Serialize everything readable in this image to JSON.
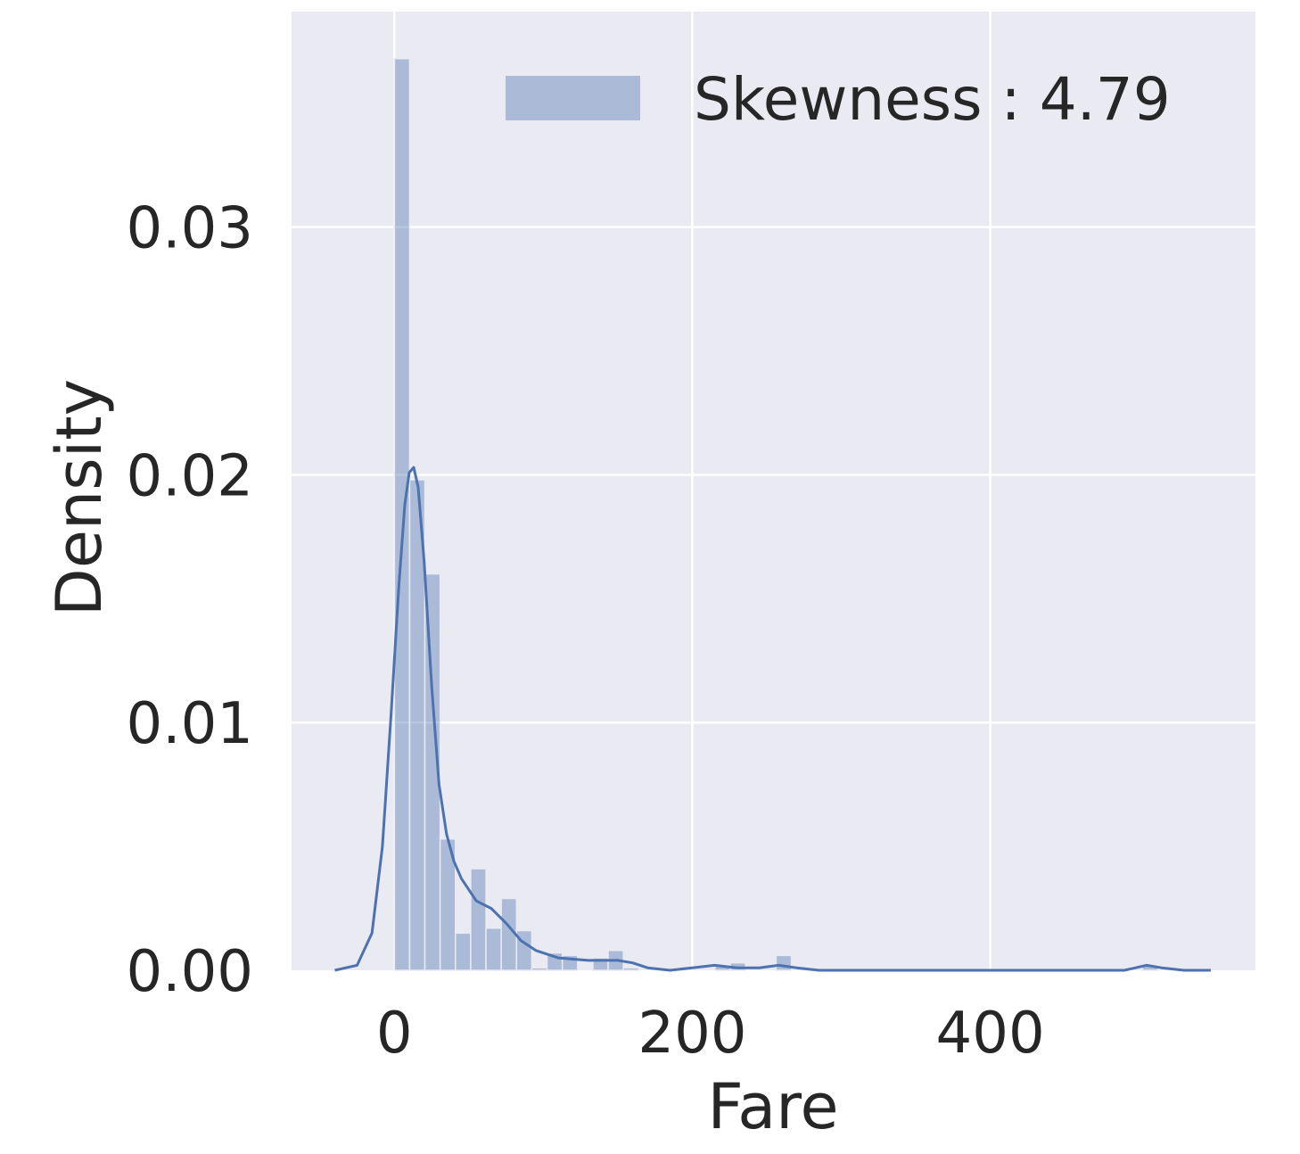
{
  "chart_data": {
    "type": "bar",
    "title": "",
    "xlabel": "Fare",
    "ylabel": "Density",
    "xlim": [
      -69,
      578
    ],
    "ylim": [
      0,
      0.0387
    ],
    "x_ticks": [
      {
        "value": 0,
        "label": "0"
      },
      {
        "value": 200,
        "label": "200"
      },
      {
        "value": 400,
        "label": "400"
      }
    ],
    "y_ticks": [
      {
        "value": 0.0,
        "label": "0.00"
      },
      {
        "value": 0.01,
        "label": "0.01"
      },
      {
        "value": 0.02,
        "label": "0.02"
      },
      {
        "value": 0.03,
        "label": "0.03"
      }
    ],
    "grid": true,
    "legend_position": "upper-right",
    "legend_label": "Skewness : 4.79",
    "series": [
      {
        "name": "Skewness : 4.79",
        "kind": "histogram",
        "color": "#4c72b0",
        "bin_width": 10.25,
        "bins_start": [
          0,
          10.25,
          20.5,
          30.75,
          41,
          51.25,
          61.5,
          71.75,
          82,
          92.25,
          102.5,
          112.75,
          123,
          133.25,
          143.5,
          153.75,
          164,
          174.25,
          184.5,
          194.75,
          205,
          215.25,
          225.5,
          235.75,
          246,
          256.25,
          266.5,
          276.75,
          287,
          297.25,
          307.5,
          317.75,
          328,
          338.25,
          348.5,
          358.75,
          369,
          379.25,
          389.5,
          399.75,
          410,
          420.25,
          430.5,
          440.75,
          451,
          461.25,
          471.5,
          481.75,
          492,
          502.25
        ],
        "values": [
          0.0368,
          0.0198,
          0.016,
          0.0053,
          0.0015,
          0.0041,
          0.0017,
          0.0029,
          0.0016,
          0.0001,
          0.0007,
          0.0006,
          0.0,
          0.0005,
          0.0008,
          0.0001,
          0.0,
          0.0,
          0.0,
          0.0,
          0.0,
          0.0002,
          0.0003,
          0.0,
          0.0,
          0.0006,
          0.0,
          0.0,
          0.0,
          0.0,
          0.0,
          0.0,
          0.0,
          0.0,
          0.0,
          0.0,
          0.0,
          0.0,
          0.0,
          0.0,
          0.0,
          0.0,
          0.0,
          0.0,
          0.0,
          0.0,
          0.0,
          0.0,
          0.0,
          0.0002
        ]
      },
      {
        "name": "kde",
        "kind": "line",
        "color": "#4c72b0",
        "x": [
          -40,
          -25,
          -15,
          -8,
          -2,
          3,
          7,
          10,
          13,
          16,
          20,
          25,
          30,
          35,
          40,
          45,
          55,
          65,
          75,
          85,
          95,
          110,
          130,
          150,
          160,
          170,
          185,
          200,
          215,
          230,
          245,
          258,
          270,
          285,
          300,
          350,
          400,
          450,
          490,
          505,
          515,
          530,
          548
        ],
        "y": [
          0.0,
          0.0002,
          0.0015,
          0.005,
          0.0105,
          0.0155,
          0.0188,
          0.0201,
          0.0203,
          0.0195,
          0.0165,
          0.0115,
          0.0075,
          0.0055,
          0.0044,
          0.0037,
          0.0028,
          0.0025,
          0.0019,
          0.0012,
          0.0008,
          0.0005,
          0.0004,
          0.0004,
          0.0003,
          0.0001,
          0.0,
          0.0001,
          0.0002,
          0.0001,
          0.0001,
          0.0002,
          0.0001,
          0.0,
          0.0,
          0.0,
          0.0,
          0.0,
          0.0,
          0.0002,
          0.0001,
          0.0,
          0.0
        ]
      }
    ]
  }
}
